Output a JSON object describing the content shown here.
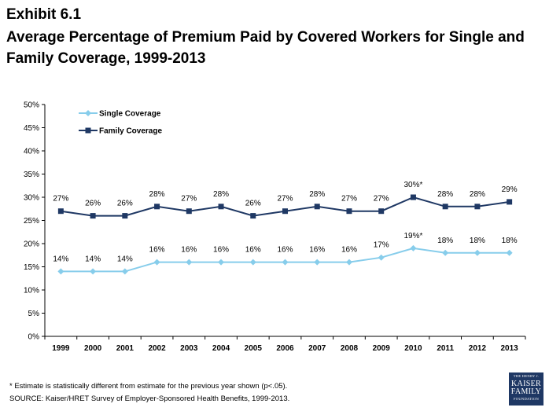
{
  "header": {
    "exhibit": "Exhibit 6.1",
    "title": "Average Percentage of Premium Paid by Covered Workers for Single and Family Coverage, 1999-2013"
  },
  "chart_data": {
    "type": "line",
    "categories": [
      "1999",
      "2000",
      "2001",
      "2002",
      "2003",
      "2004",
      "2005",
      "2006",
      "2007",
      "2008",
      "2009",
      "2010",
      "2011",
      "2012",
      "2013"
    ],
    "ylim": [
      0,
      50
    ],
    "yticks": [
      "0%",
      "5%",
      "10%",
      "15%",
      "20%",
      "25%",
      "30%",
      "35%",
      "40%",
      "45%",
      "50%"
    ],
    "grid": false,
    "legend_position": "top-left",
    "series": [
      {
        "name": "Single Coverage",
        "color": "#87cdeb",
        "marker": "diamond",
        "values": [
          14,
          14,
          14,
          16,
          16,
          16,
          16,
          16,
          16,
          16,
          17,
          19,
          18,
          18,
          18
        ],
        "labels": [
          "14%",
          "14%",
          "14%",
          "16%",
          "16%",
          "16%",
          "16%",
          "16%",
          "16%",
          "16%",
          "17%",
          "19%*",
          "18%",
          "18%",
          "18%"
        ]
      },
      {
        "name": "Family Coverage",
        "color": "#1f3864",
        "marker": "square",
        "values": [
          27,
          26,
          26,
          28,
          27,
          28,
          26,
          27,
          28,
          27,
          27,
          30,
          28,
          28,
          29
        ],
        "labels": [
          "27%",
          "26%",
          "26%",
          "28%",
          "27%",
          "28%",
          "26%",
          "27%",
          "28%",
          "27%",
          "27%",
          "30%*",
          "28%",
          "28%",
          "29%"
        ]
      }
    ]
  },
  "footnotes": {
    "note": "* Estimate is statistically different from estimate for the previous year shown (p<.05).",
    "source": "SOURCE:  Kaiser/HRET Survey of Employer-Sponsored Health Benefits, 1999-2013."
  },
  "logo": {
    "line1": "THE HENRY J.",
    "line2": "KAISER",
    "line3": "FAMILY",
    "line4": "FOUNDATION"
  }
}
